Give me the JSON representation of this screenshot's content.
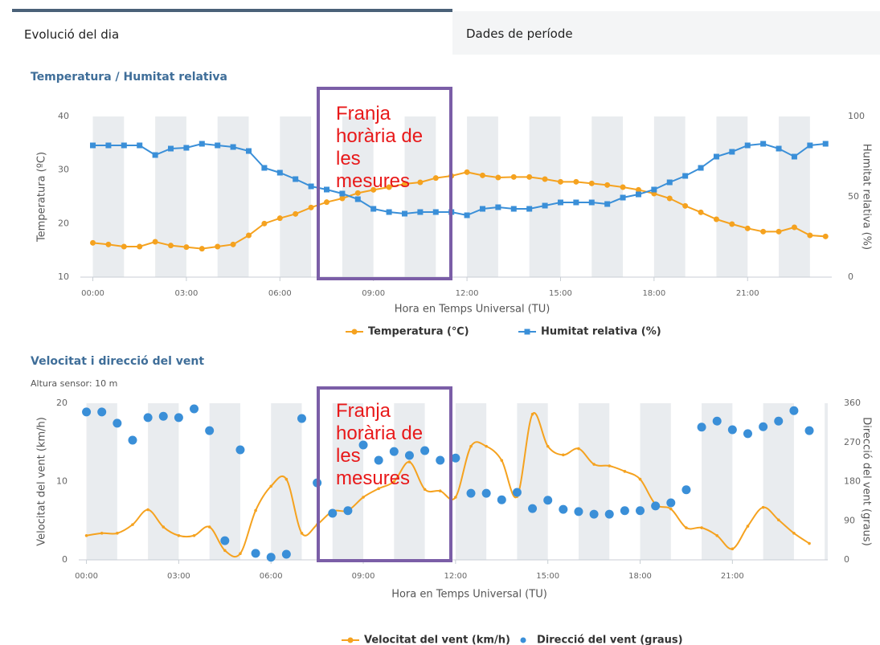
{
  "tabs": [
    "Evolució del dia",
    "Dades de període"
  ],
  "chart_data": [
    {
      "type": "line",
      "title": "Temperatura / Humitat relativa",
      "xlabel": "Hora en Temps Universal (TU)",
      "ylabel": "Temperatura (ºC)",
      "y2label": "Humitat relativa (%)",
      "annotation": "Franja horària de les mesures",
      "legend": "bottom",
      "x": [
        0,
        0.5,
        1,
        1.5,
        2,
        2.5,
        3,
        3.5,
        4,
        4.5,
        5,
        5.5,
        6,
        6.5,
        7,
        7.5,
        8,
        8.5,
        9,
        9.5,
        10,
        10.5,
        11,
        11.5,
        12,
        12.5,
        13,
        13.5,
        14,
        14.5,
        15,
        15.5,
        16,
        16.5,
        17,
        17.5,
        18,
        18.5,
        19,
        19.5,
        20,
        20.5,
        21,
        21.5,
        22,
        22.5,
        23,
        23.5
      ],
      "xlim": [
        -0.4,
        23.7
      ],
      "xticks": [
        {
          "value": 0,
          "label": "00:00"
        },
        {
          "value": 3,
          "label": "03:00"
        },
        {
          "value": 6,
          "label": "06:00"
        },
        {
          "value": 9,
          "label": "09:00"
        },
        {
          "value": 12,
          "label": "12:00"
        },
        {
          "value": 15,
          "label": "15:00"
        },
        {
          "value": 18,
          "label": "18:00"
        },
        {
          "value": 21,
          "label": "21:00"
        }
      ],
      "ylim": [
        10,
        40
      ],
      "yticks": [
        10,
        20,
        30,
        40
      ],
      "y2lim": [
        0,
        100
      ],
      "y2ticks": [
        0,
        50,
        100
      ],
      "series": [
        {
          "name": "Temperatura (℃)",
          "color": "#f5a21f",
          "marker": "circle",
          "line": true,
          "axis": "y",
          "values": [
            16.4,
            16.1,
            15.7,
            15.7,
            16.6,
            15.9,
            15.6,
            15.3,
            15.7,
            16.1,
            17.8,
            20.0,
            21.0,
            21.8,
            23.0,
            24.0,
            24.7,
            25.7,
            26.3,
            26.8,
            27.4,
            27.7,
            28.5,
            28.9,
            29.6,
            29.0,
            28.6,
            28.7,
            28.7,
            28.3,
            27.8,
            27.8,
            27.5,
            27.2,
            26.8,
            26.3,
            25.6,
            24.7,
            23.3,
            22.1,
            20.8,
            19.9,
            19.1,
            18.5,
            18.5,
            19.3,
            17.8,
            17.6
          ]
        },
        {
          "name": "Humitat relativa (%)",
          "color": "#3a8fd8",
          "marker": "square",
          "line": true,
          "axis": "y2",
          "values": [
            82,
            82,
            82,
            82,
            76,
            80,
            80.5,
            83,
            82,
            81,
            78.5,
            68,
            65,
            61,
            56.5,
            54.5,
            52,
            48.5,
            42.5,
            40.5,
            39.5,
            40.5,
            40.5,
            40.5,
            38.5,
            42.5,
            43.5,
            42.5,
            42.5,
            44.5,
            46.5,
            46.5,
            46.5,
            45.5,
            49.5,
            51.5,
            54.5,
            59,
            63,
            68,
            75,
            78,
            82,
            83,
            80,
            75,
            82,
            83
          ]
        }
      ]
    },
    {
      "type": "line",
      "title": "Velocitat i direcció del vent",
      "subtitle": "Altura sensor: 10 m",
      "xlabel": "Hora en Temps Universal (TU)",
      "ylabel": "Velocitat del vent (km/h)",
      "y2label": "Direcció del vent (graus)",
      "annotation": "Franja horària de les mesures",
      "legend": "bottom",
      "x": [
        0,
        0.5,
        1,
        1.5,
        2,
        2.5,
        3,
        3.5,
        4,
        4.5,
        5,
        5.5,
        6,
        6.5,
        7,
        7.5,
        8,
        8.5,
        9,
        9.5,
        10,
        10.5,
        11,
        11.5,
        12,
        12.5,
        13,
        13.5,
        14,
        14.5,
        15,
        15.5,
        16,
        16.5,
        17,
        17.5,
        18,
        18.5,
        19,
        19.5,
        20,
        20.5,
        21,
        21.5,
        22,
        22.5,
        23,
        23.5
      ],
      "xlim": [
        -0.25,
        24.1
      ],
      "xticks": [
        {
          "value": 0,
          "label": "00:00"
        },
        {
          "value": 3,
          "label": "03:00"
        },
        {
          "value": 6,
          "label": "06:00"
        },
        {
          "value": 9,
          "label": "09:00"
        },
        {
          "value": 12,
          "label": "12:00"
        },
        {
          "value": 15,
          "label": "15:00"
        },
        {
          "value": 18,
          "label": "18:00"
        },
        {
          "value": 21,
          "label": "21:00"
        }
      ],
      "ylim": [
        0,
        20
      ],
      "yticks": [
        0,
        10,
        20
      ],
      "y2lim": [
        0,
        360
      ],
      "y2ticks": [
        0,
        90,
        180,
        270,
        360
      ],
      "series": [
        {
          "name": "Velocitat del vent (km/h)",
          "color": "#f5a21f",
          "marker": "dot",
          "line": true,
          "smooth": true,
          "axis": "y",
          "values": [
            3.1,
            3.4,
            3.4,
            4.5,
            6.4,
            4.2,
            3.1,
            3.1,
            4.2,
            1.2,
            0.8,
            6.3,
            9.4,
            10.3,
            3.4,
            4.5,
            6.2,
            6.3,
            8.0,
            9.1,
            10.0,
            12.5,
            9.0,
            8.8,
            8.0,
            14.5,
            14.5,
            12.7,
            8.1,
            18.6,
            14.5,
            13.4,
            14.2,
            12.2,
            12.0,
            11.3,
            10.3,
            7.1,
            6.5,
            4.1,
            4.1,
            3.1,
            1.4,
            4.3,
            6.7,
            5.1,
            3.4,
            2.1
          ]
        },
        {
          "name": "Direcció del vent (graus)",
          "color": "#3a8fd8",
          "marker": "circle",
          "line": false,
          "axis": "y2",
          "values": [
            340,
            340,
            314,
            275,
            327,
            330,
            327,
            347,
            297,
            44,
            253,
            15,
            6,
            13,
            325,
            177,
            107,
            113,
            264,
            229,
            249,
            240,
            251,
            229,
            234,
            153,
            153,
            138,
            155,
            118,
            137,
            116,
            111,
            105,
            105,
            113,
            113,
            124,
            131,
            161,
            305,
            319,
            299,
            290,
            306,
            319,
            343,
            297
          ]
        }
      ]
    }
  ]
}
